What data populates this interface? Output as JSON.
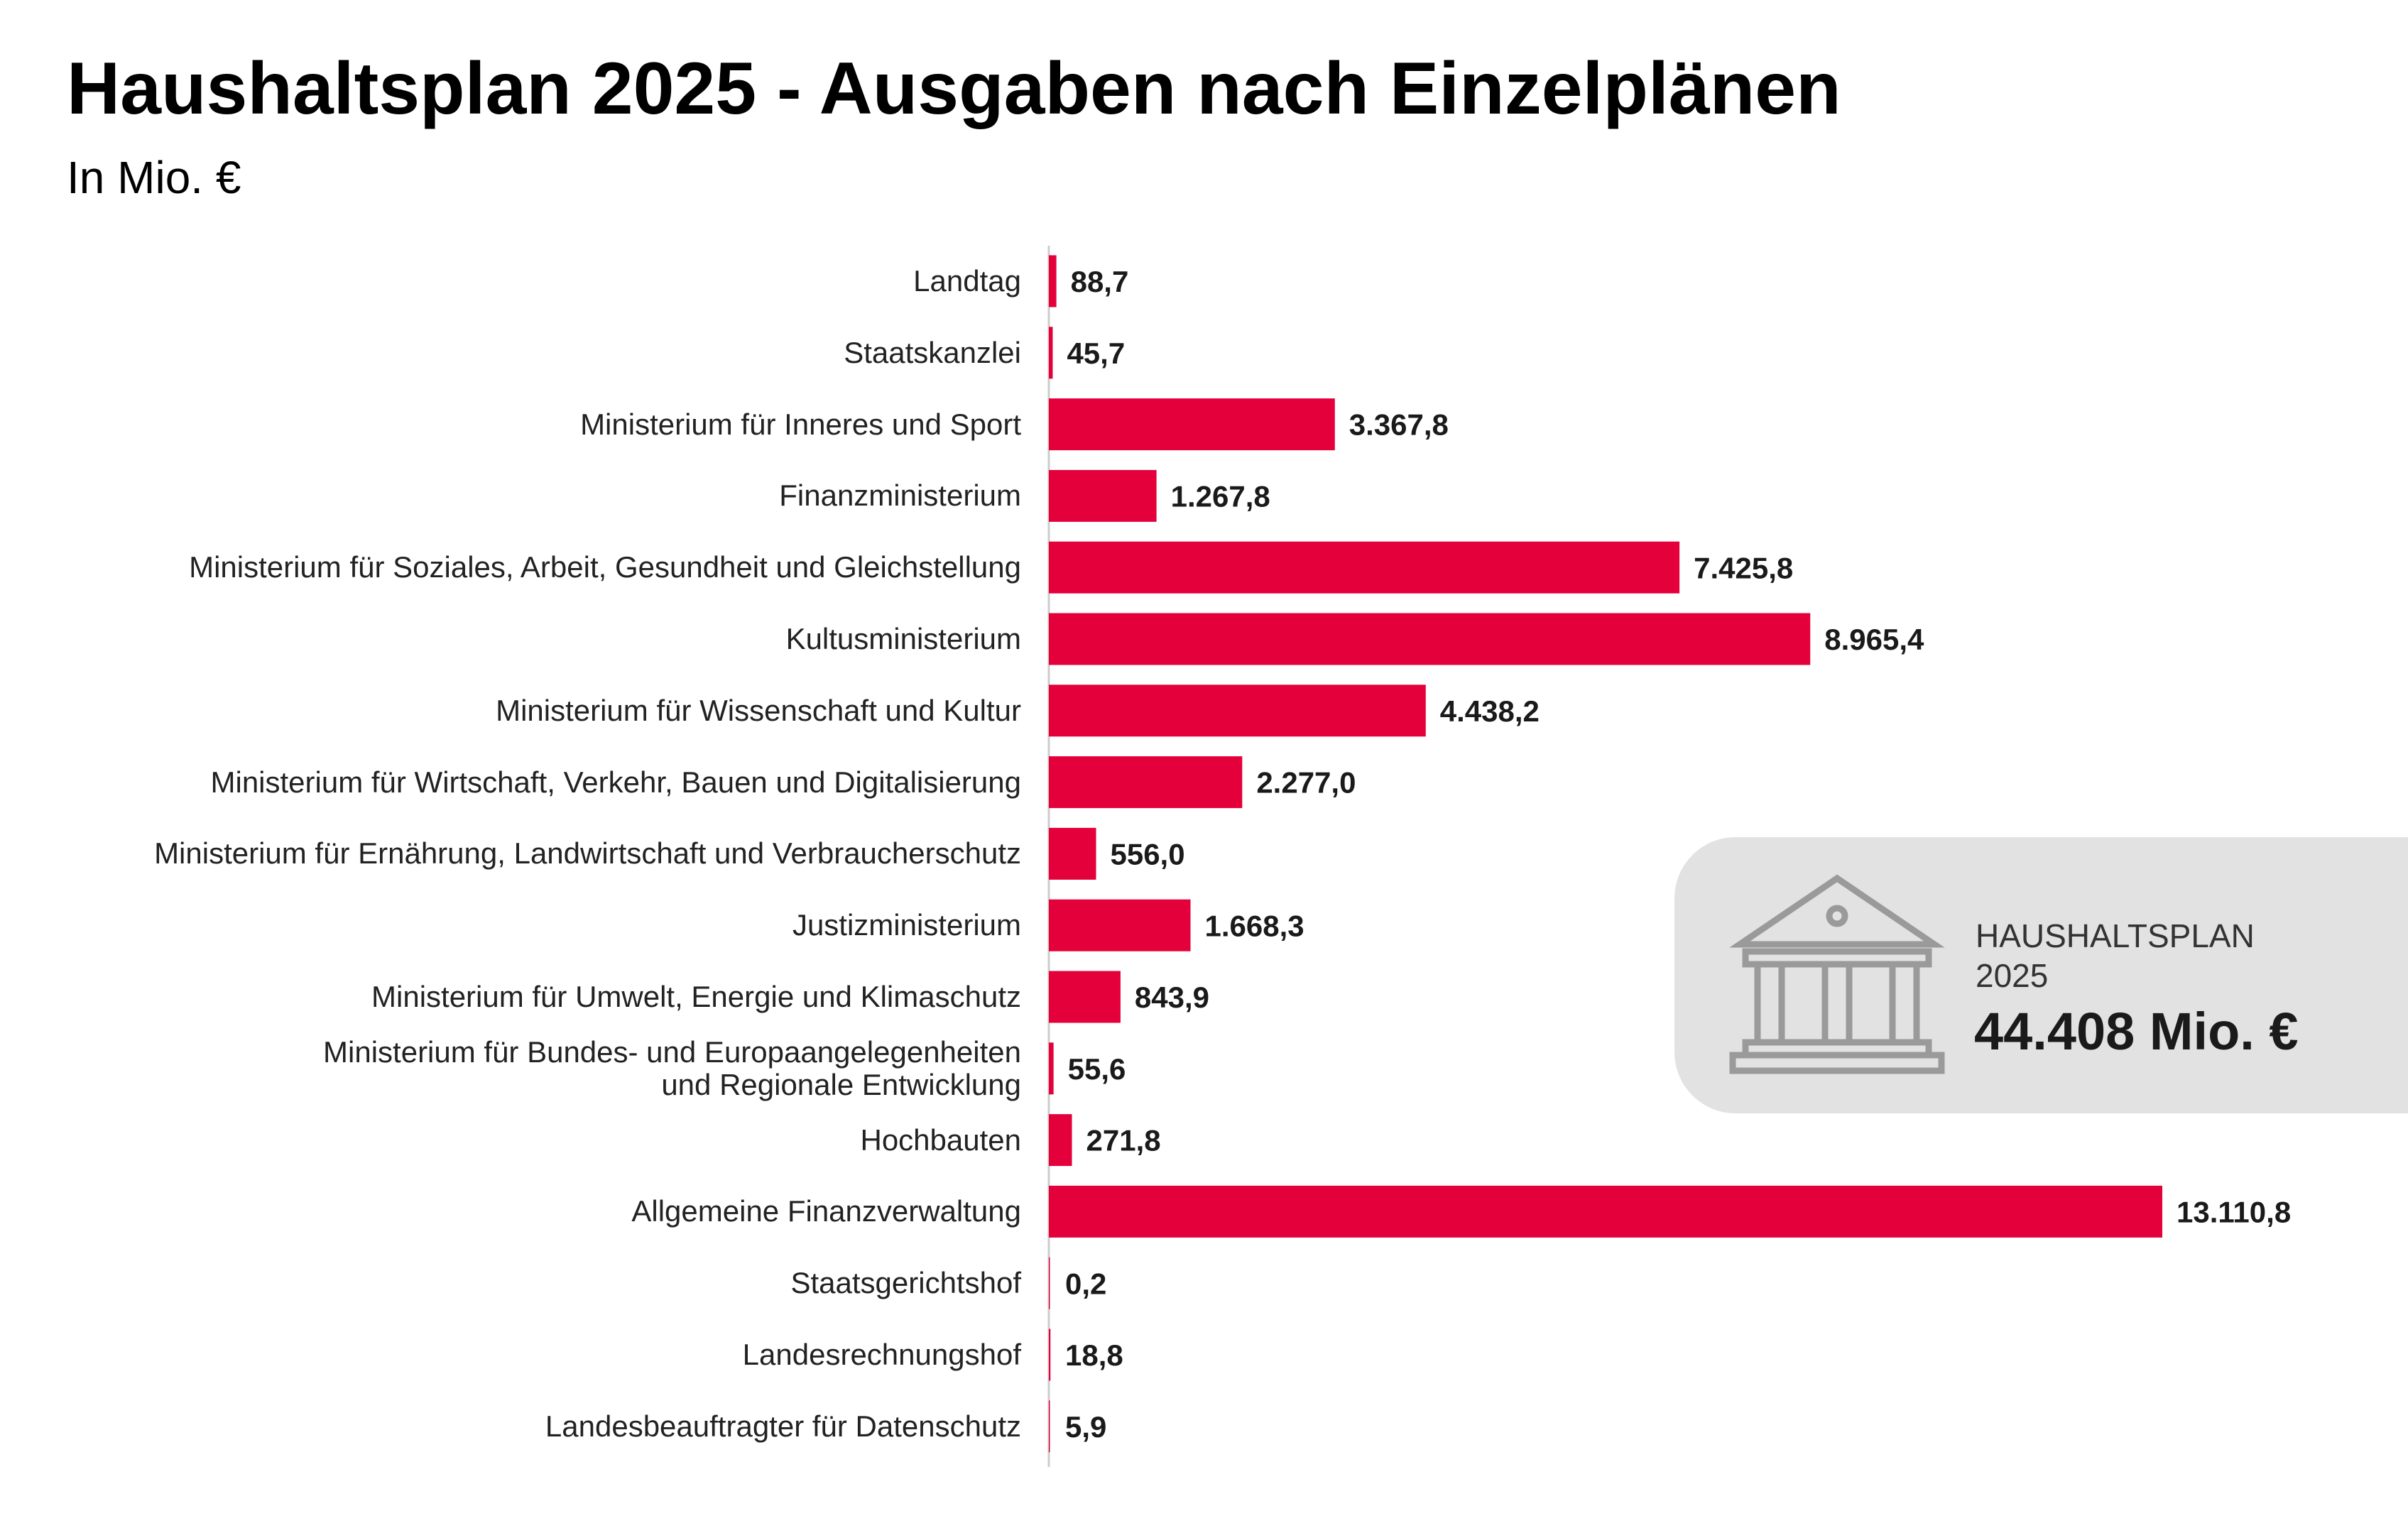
{
  "chart_data": {
    "type": "bar",
    "orientation": "horizontal",
    "title": "Haushaltsplan 2025 - Ausgaben nach Einzelplänen",
    "subtitle": "In Mio. €",
    "color": "#e4003a",
    "categories": [
      "Landtag",
      "Staatskanzlei",
      "Ministerium für Inneres und Sport",
      "Finanzministerium",
      "Ministerium für Soziales, Arbeit, Gesundheit und Gleichstellung",
      "Kultusministerium",
      "Ministerium für Wissenschaft und Kultur",
      "Ministerium für Wirtschaft, Verkehr, Bauen und Digitalisierung",
      "Ministerium für Ernährung, Landwirtschaft und Verbraucherschutz",
      "Justizministerium",
      "Ministerium für Umwelt, Energie und Klimaschutz",
      "Ministerium für Bundes- und Europaangelegenheiten\nund Regionale Entwicklung",
      "Hochbauten",
      "Allgemeine Finanzverwaltung",
      "Staatsgerichtshof",
      "Landesrechnungshof",
      "Landesbeauftragter für Datenschutz"
    ],
    "values": [
      88.7,
      45.7,
      3367.8,
      1267.8,
      7425.8,
      8965.4,
      4438.2,
      2277.0,
      556.0,
      1668.3,
      843.9,
      55.6,
      271.8,
      13110.8,
      0.2,
      18.8,
      5.9
    ],
    "value_labels": [
      "88,7",
      "45,7",
      "3.367,8",
      "1.267,8",
      "7.425,8",
      "8.965,4",
      "4.438,2",
      "2.277,0",
      "556,0",
      "1.668,3",
      "843,9",
      "55,6",
      "271,8",
      "13.110,8",
      "0,2",
      "18,8",
      "5,9"
    ]
  },
  "infobox": {
    "label": "HAUSHALTSPLAN\n2025",
    "total": "44.408 Mio. €"
  }
}
